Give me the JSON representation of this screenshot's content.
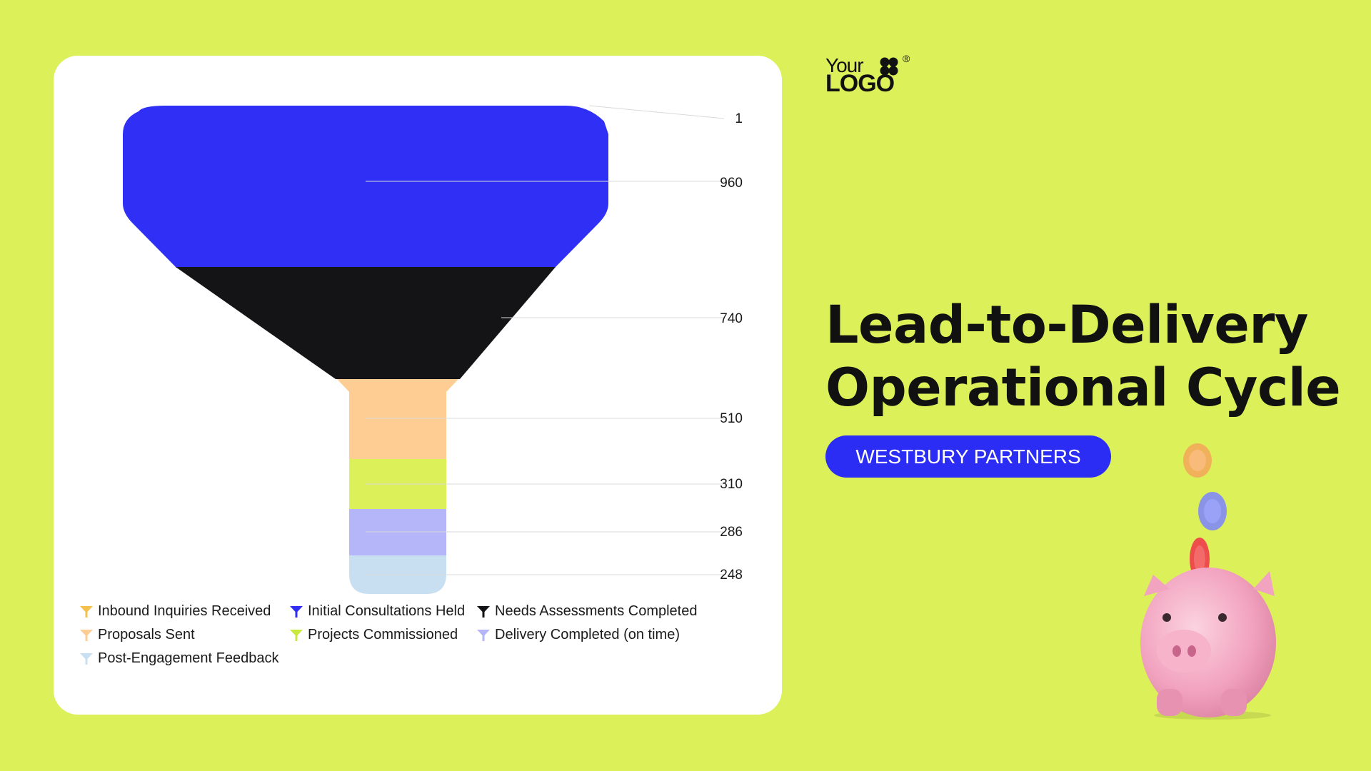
{
  "chart_data": {
    "type": "funnel",
    "title": "",
    "stages": [
      {
        "name": "Inbound Inquiries Received",
        "value": 1,
        "color": "#f5c14e"
      },
      {
        "name": "Initial Consultations Held",
        "value": 960,
        "color": "#2f2ff5"
      },
      {
        "name": "Needs Assessments Completed",
        "value": 740,
        "color": "#141416"
      },
      {
        "name": "Proposals Sent",
        "value": 510,
        "color": "#fdcd94"
      },
      {
        "name": "Projects Commissioned",
        "value": 310,
        "color": "#dcf05a"
      },
      {
        "name": "Delivery Completed (on time)",
        "value": 286,
        "color": "#b4b6f9"
      },
      {
        "name": "Post-Engagement Feedback",
        "value": 248,
        "color": "#c8dff2"
      }
    ],
    "legend_position": "bottom"
  },
  "legend": [
    {
      "label": "Inbound Inquiries Received",
      "color": "#f5c14e"
    },
    {
      "label": "Initial Consultations Held",
      "color": "#2f2ff5"
    },
    {
      "label": "Needs Assessments Completed",
      "color": "#141416"
    },
    {
      "label": "Proposals Sent",
      "color": "#fdcd94"
    },
    {
      "label": "Projects Commissioned",
      "color": "#c9e83c"
    },
    {
      "label": "Delivery Completed (on time)",
      "color": "#b4b6f9"
    },
    {
      "label": "Post-Engagement Feedback",
      "color": "#c8dff2"
    }
  ],
  "logo": {
    "line1": "Your",
    "line2": "LOGO",
    "registered": "®"
  },
  "title": {
    "line1": "Lead-to-Delivery",
    "line2": "Operational Cycle"
  },
  "badge": {
    "label": "WESTBURY PARTNERS"
  },
  "icons": {
    "legend": "funnel-icon",
    "illustration": "piggy-bank-with-coins"
  },
  "colors": {
    "background": "#dcf05a",
    "accent": "#2b2df5",
    "card": "#ffffff"
  }
}
